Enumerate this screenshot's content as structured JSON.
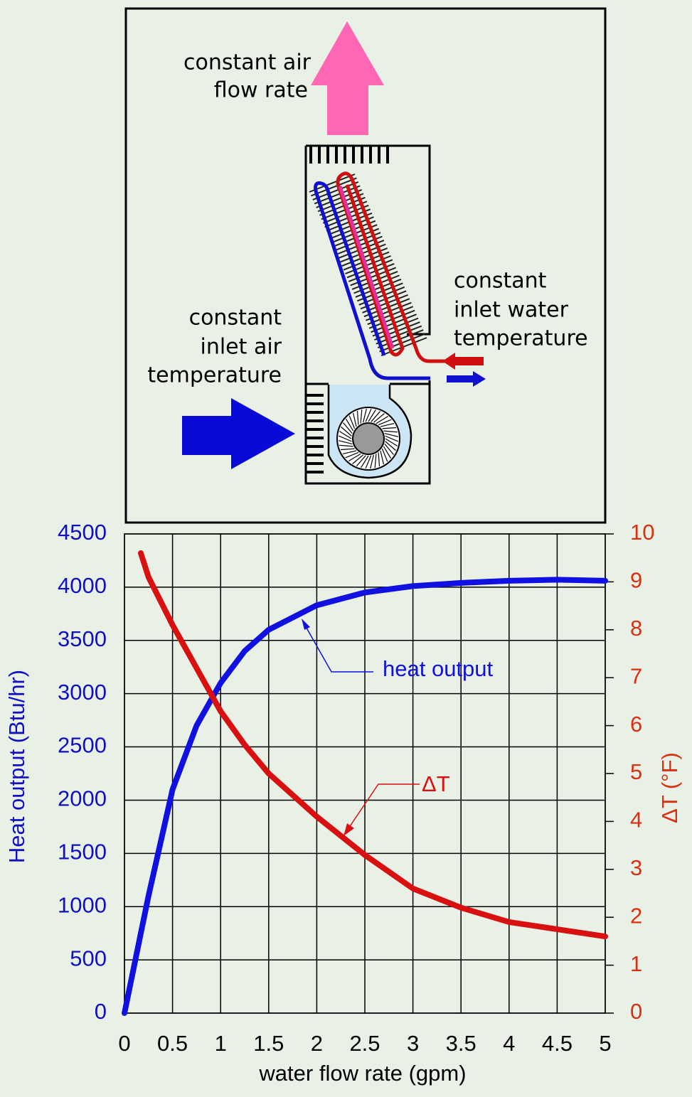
{
  "diagram": {
    "labels": [
      {
        "lines": [
          "constant air",
          "flow rate"
        ]
      },
      {
        "lines": [
          "constant",
          "inlet water",
          "temperature"
        ]
      },
      {
        "lines": [
          "constant",
          "inlet air",
          "temperature"
        ]
      }
    ]
  },
  "chart_data": {
    "type": "line",
    "x": [
      0,
      0.17,
      0.25,
      0.5,
      0.75,
      1,
      1.25,
      1.5,
      2,
      2.5,
      3,
      3.5,
      4,
      4.5,
      5
    ],
    "series": [
      {
        "name": "heat output",
        "color": "#1010e0",
        "axis": "y",
        "values": [
          0,
          750,
          1100,
          2100,
          2700,
          3100,
          3400,
          3600,
          3830,
          3950,
          4010,
          4040,
          4060,
          4070,
          4060
        ]
      },
      {
        "name": "ΔT",
        "color": "#d81010",
        "axis": "y2",
        "values": [
          null,
          9.6,
          9.1,
          8.1,
          7.2,
          6.3,
          5.6,
          5.0,
          4.1,
          3.3,
          2.6,
          2.2,
          1.9,
          1.75,
          1.6
        ]
      }
    ],
    "x_label": "water flow rate (gpm)",
    "y_label": "Heat output (Btu/hr)",
    "y2_label": "ΔT (°F)",
    "xlim": [
      0,
      5
    ],
    "xticks": [
      0,
      0.5,
      1,
      1.5,
      2,
      2.5,
      3,
      3.5,
      4,
      4.5,
      5
    ],
    "ylim": [
      0,
      4500
    ],
    "yticks": [
      0,
      500,
      1000,
      1500,
      2000,
      2500,
      3000,
      3500,
      4000,
      4500
    ],
    "y2lim": [
      0,
      10
    ],
    "y2ticks": [
      0,
      1,
      2,
      3,
      4,
      5,
      6,
      7,
      8,
      9,
      10
    ],
    "grid": true
  }
}
